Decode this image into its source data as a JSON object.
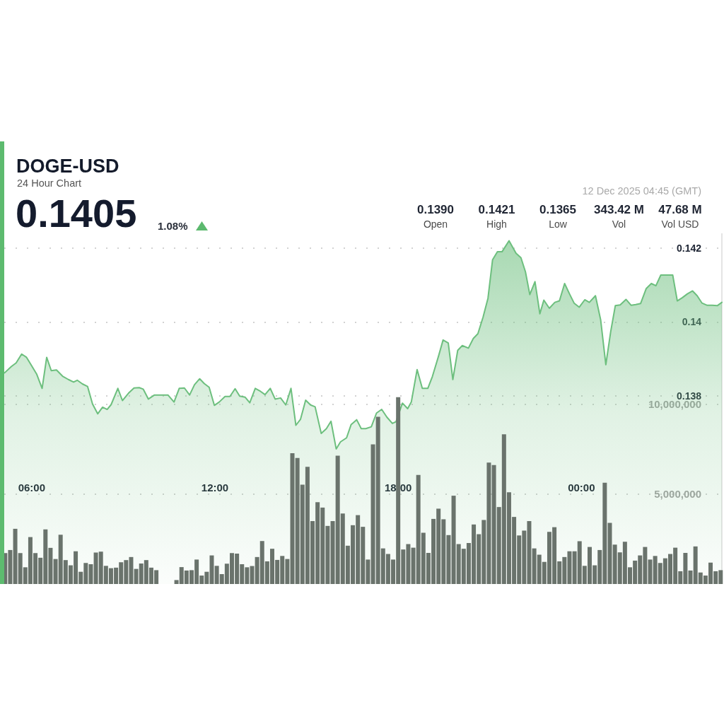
{
  "chart_data": {
    "type": "area",
    "title": "DOGE-USD",
    "subtitle": "24 Hour Chart",
    "annotations": [
      "0.1405",
      "1.08%",
      "0.1390",
      "Open",
      "0.1421",
      "High",
      "0.1365",
      "Low",
      "343.42 M",
      "Vol",
      "47.68 M",
      "Vol USD",
      "12 Dec 2025 04:45 (GMT)"
    ],
    "x": [
      5.13,
      5.295,
      5.46,
      5.625,
      5.79,
      5.955,
      6.12,
      6.285,
      6.45,
      6.615,
      6.78,
      6.945,
      7.11,
      7.275,
      7.44,
      7.605,
      7.77,
      7.935,
      8.1,
      8.265,
      8.43,
      8.595,
      8.76,
      8.925,
      9.09,
      9.255,
      9.42,
      9.585,
      9.75,
      9.915,
      10.08,
      10.245,
      10.41,
      10.575,
      10.74,
      10.905,
      11.07,
      11.235,
      11.4,
      11.565,
      11.73,
      11.895,
      12.06,
      12.225,
      12.39,
      12.555,
      12.72,
      12.885,
      13.05,
      13.215,
      13.38,
      13.545,
      13.71,
      13.875,
      14.04,
      14.205,
      14.37,
      14.535,
      14.7,
      14.865,
      15.03,
      15.195,
      15.36,
      15.525,
      15.69,
      15.855,
      16.02,
      16.185,
      16.35,
      16.515,
      16.68,
      16.845,
      17.01,
      17.175,
      17.34,
      17.505,
      17.67,
      17.835,
      18,
      18.165,
      18.33,
      18.495,
      18.66,
      18.825,
      18.99,
      19.155,
      19.32,
      19.485,
      19.65,
      19.815,
      19.98,
      20.145,
      20.31,
      20.475,
      20.64,
      20.805,
      20.97,
      21.135,
      21.3,
      21.465,
      21.63,
      21.795,
      21.96,
      22.125,
      22.29,
      22.455,
      22.62,
      22.785,
      22.95,
      23.115,
      23.28,
      23.445,
      23.61,
      23.775,
      23.94,
      24.105,
      24.27,
      24.435,
      24.6,
      24.765,
      24.93,
      25.095,
      25.26,
      25.425,
      25.59,
      25.755,
      25.92,
      26.085,
      26.25,
      26.415,
      26.58,
      26.745,
      26.91,
      27.075,
      27.24,
      27.405,
      27.57,
      27.735,
      27.9,
      28.065,
      28.23,
      28.395,
      28.56
    ],
    "xlim": [
      5.1,
      28.6
    ],
    "xticks": [
      {
        "value": 6,
        "label": "06:00"
      },
      {
        "value": 12,
        "label": "12:00"
      },
      {
        "value": 18,
        "label": "18:00"
      },
      {
        "value": 24,
        "label": "00:00"
      }
    ],
    "ylim": [
      0.1329,
      0.1424
    ],
    "yticks": [
      0.138,
      0.14,
      0.142
    ],
    "y2lim": [
      0,
      19500000
    ],
    "y2ticks": [
      {
        "value": 5000000,
        "label": "5,000,000"
      },
      {
        "value": 10000000,
        "label": "10,000,000"
      }
    ],
    "grid": "y",
    "series": [
      {
        "color": "#6dbf7e",
        "x": [
          5.11,
          5.33,
          5.49,
          5.67,
          5.83,
          6.0,
          6.16,
          6.34,
          6.49,
          6.64,
          6.81,
          7.01,
          7.2,
          7.37,
          7.49,
          7.66,
          7.83,
          7.99,
          8.16,
          8.32,
          8.47,
          8.6,
          8.82,
          8.97,
          9.17,
          9.35,
          9.52,
          9.65,
          9.82,
          10.02,
          10.21,
          10.46,
          10.66,
          10.83,
          11.0,
          11.17,
          11.33,
          11.5,
          11.65,
          11.81,
          11.98,
          12.14,
          12.33,
          12.49,
          12.66,
          12.81,
          12.99,
          13.14,
          13.32,
          13.49,
          13.64,
          13.81,
          13.97,
          14.15,
          14.32,
          14.49,
          14.65,
          14.8,
          14.97,
          15.13,
          15.28,
          15.48,
          15.65,
          15.8,
          15.97,
          16.11,
          16.31,
          16.46,
          16.64,
          16.79,
          16.94,
          17.12,
          17.29,
          17.46,
          17.63,
          17.81,
          17.93,
          18.14,
          18.31,
          18.43,
          18.62,
          18.79,
          18.97,
          19.12,
          19.32,
          19.47,
          19.64,
          19.79,
          19.95,
          20.1,
          20.3,
          20.46,
          20.61,
          20.78,
          20.94,
          21.09,
          21.25,
          21.4,
          21.63,
          21.86,
          22.02,
          22.17,
          22.31,
          22.48,
          22.64,
          22.77,
          22.95,
          23.13,
          23.28,
          23.45,
          23.61,
          23.76,
          23.93,
          24.11,
          24.26,
          24.46,
          24.63,
          24.8,
          24.96,
          25.11,
          25.27,
          25.46,
          25.63,
          25.78,
          25.94,
          26.12,
          26.29,
          26.44,
          26.6,
          26.81,
          26.99,
          27.14,
          27.31,
          27.47,
          27.64,
          27.79,
          27.95,
          28.12,
          28.28,
          28.45,
          28.6
        ],
        "values": [
          0.13862,
          0.13879,
          0.13889,
          0.13913,
          0.13904,
          0.13881,
          0.13859,
          0.1382,
          0.13904,
          0.13868,
          0.1387,
          0.13853,
          0.13844,
          0.13837,
          0.13842,
          0.13832,
          0.13825,
          0.13778,
          0.13751,
          0.13769,
          0.13763,
          0.13776,
          0.1382,
          0.13787,
          0.13807,
          0.13821,
          0.13822,
          0.13818,
          0.13791,
          0.13802,
          0.13802,
          0.13802,
          0.13783,
          0.1382,
          0.13821,
          0.13802,
          0.1383,
          0.13846,
          0.13833,
          0.13823,
          0.13774,
          0.13783,
          0.13798,
          0.13798,
          0.13819,
          0.13799,
          0.13796,
          0.13781,
          0.1382,
          0.13812,
          0.13803,
          0.1382,
          0.13791,
          0.13794,
          0.13775,
          0.1382,
          0.1372,
          0.13736,
          0.13788,
          0.13775,
          0.1377,
          0.13698,
          0.13711,
          0.13731,
          0.13656,
          0.13675,
          0.13686,
          0.13722,
          0.13735,
          0.13711,
          0.13711,
          0.13716,
          0.13753,
          0.13763,
          0.13742,
          0.13725,
          0.1373,
          0.1378,
          0.13765,
          0.13783,
          0.13871,
          0.1382,
          0.1382,
          0.13852,
          0.13907,
          0.13951,
          0.13943,
          0.13844,
          0.13923,
          0.13936,
          0.13929,
          0.13955,
          0.13968,
          0.14013,
          0.14064,
          0.14168,
          0.1419,
          0.1419,
          0.1422,
          0.14186,
          0.14174,
          0.14135,
          0.14074,
          0.14109,
          0.14022,
          0.14059,
          0.14037,
          0.14053,
          0.14057,
          0.14104,
          0.14076,
          0.14051,
          0.1404,
          0.1406,
          0.14053,
          0.14071,
          0.14006,
          0.13884,
          0.13974,
          0.14044,
          0.14046,
          0.14061,
          0.14045,
          0.14047,
          0.1405,
          0.1409,
          0.14104,
          0.14098,
          0.14127,
          0.14127,
          0.14127,
          0.14057,
          0.14066,
          0.14076,
          0.14084,
          0.14071,
          0.14051,
          0.14045,
          0.14045,
          0.14044,
          0.14053
        ]
      },
      {
        "type": "bar",
        "axis": "y2",
        "color": "#6a736c",
        "values": [
          1720000,
          1890000,
          3070000,
          1720000,
          930000,
          2610000,
          1720000,
          1460000,
          3040000,
          2010000,
          1390000,
          2740000,
          1330000,
          1040000,
          1820000,
          680000,
          1170000,
          1100000,
          1750000,
          1800000,
          1010000,
          880000,
          910000,
          1210000,
          1330000,
          1500000,
          840000,
          1140000,
          1330000,
          910000,
          770000,
          null,
          null,
          null,
          220000,
          940000,
          750000,
          770000,
          1360000,
          470000,
          680000,
          1590000,
          1010000,
          550000,
          1130000,
          1720000,
          1690000,
          1100000,
          930000,
          1000000,
          1500000,
          2390000,
          1260000,
          1960000,
          1340000,
          1560000,
          1390000,
          7270000,
          7010000,
          5520000,
          6520000,
          3500000,
          4550000,
          4250000,
          3230000,
          3500000,
          7140000,
          3920000,
          2130000,
          3270000,
          3830000,
          3180000,
          1360000,
          7760000,
          9300000,
          1980000,
          1670000,
          1360000,
          10390000,
          1920000,
          2220000,
          2020000,
          6060000,
          2850000,
          1730000,
          3620000,
          4190000,
          3600000,
          2720000,
          4910000,
          2220000,
          1960000,
          2280000,
          3310000,
          2770000,
          3560000,
          6750000,
          6610000,
          4280000,
          8320000,
          5100000,
          3730000,
          2700000,
          2970000,
          3500000,
          1980000,
          1630000,
          1230000,
          2900000,
          3160000,
          1260000,
          1500000,
          1820000,
          1820000,
          2380000,
          1010000,
          2060000,
          1040000,
          1890000,
          5630000,
          3400000,
          2190000,
          1760000,
          2350000,
          930000,
          1300000,
          1590000,
          2060000,
          1360000,
          1560000,
          1170000,
          1430000,
          1670000,
          2020000,
          710000,
          1730000,
          750000,
          2090000,
          640000,
          470000,
          1190000,
          710000,
          770000
        ]
      }
    ]
  }
}
